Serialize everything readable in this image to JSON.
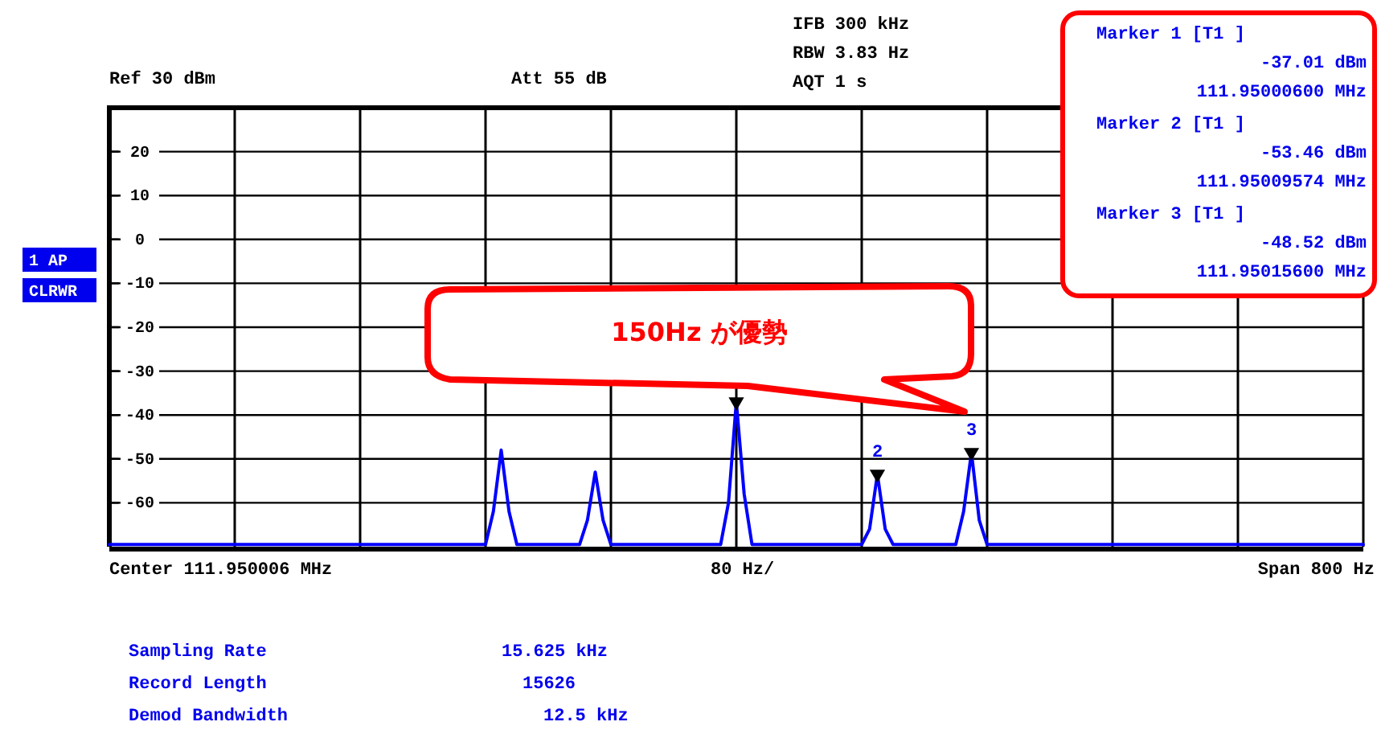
{
  "chart_data": {
    "type": "line",
    "ylim": [
      -70,
      30
    ],
    "categories": [
      null,
      null,
      null,
      null,
      null,
      null,
      null,
      null,
      null,
      null,
      null,
      null,
      null,
      null,
      null,
      null,
      null,
      null,
      null,
      null,
      null,
      null,
      null,
      null,
      null,
      null,
      null,
      null,
      null,
      null,
      null,
      null,
      null,
      null,
      null,
      null,
      null,
      null,
      null,
      null,
      null,
      null,
      null,
      null,
      null,
      null,
      null,
      null,
      null,
      null,
      null,
      null,
      null,
      null,
      null,
      null,
      null,
      null,
      null,
      null,
      null,
      null,
      null,
      null,
      null,
      null,
      null,
      null,
      null,
      null,
      null,
      null,
      null,
      null,
      null,
      null,
      null,
      null,
      null,
      null,
      null,
      null,
      null,
      null,
      null,
      null,
      null,
      null,
      null,
      null,
      null,
      null,
      null,
      null,
      null,
      null,
      null,
      null,
      null,
      null,
      null,
      null,
      null,
      null,
      null,
      null,
      null,
      null,
      null,
      null,
      null,
      null,
      null,
      null,
      null,
      null,
      null,
      null,
      null,
      null,
      null,
      null,
      null,
      null,
      null,
      null,
      null,
      null,
      null,
      null,
      null,
      null,
      null,
      null,
      null,
      null,
      null,
      null,
      null,
      null,
      null,
      null,
      null,
      null,
      null,
      null,
      null,
      null,
      null,
      null,
      null,
      null,
      null,
      null,
      null,
      null,
      null,
      null,
      null,
      null,
      null
    ],
    "yticks": [
      -60,
      -50,
      -40,
      -30,
      -20,
      -10,
      0,
      10,
      20
    ],
    "grid": true,
    "series": [
      {
        "color": "#0000ff",
        "line_style": "solid",
        "values": [
          -69.5,
          -69.5,
          -69.5,
          -69.5,
          -69.5,
          -69.5,
          -69.5,
          -69.5,
          -69.5,
          -69.5,
          -69.5,
          -69.5,
          -69.5,
          -69.5,
          -69.5,
          -69.5,
          -69.5,
          -69.5,
          -69.5,
          -69.5,
          -69.5,
          -69.5,
          -69.5,
          -69.5,
          -69.5,
          -69.5,
          -69.5,
          -69.5,
          -69.5,
          -69.5,
          -69.5,
          -69.5,
          -69.5,
          -69.5,
          -69.5,
          -69.5,
          -69.5,
          -69.5,
          -69.5,
          -69.5,
          -69.5,
          -69.5,
          -69.5,
          -69.5,
          -69.5,
          -69.5,
          -69.5,
          -69.5,
          -69.5,
          -62,
          -48,
          -62,
          -69.5,
          -69.5,
          -69.5,
          -69.5,
          -69.5,
          -69.5,
          -69.5,
          -69.5,
          -69.5,
          -64,
          -53,
          -64,
          -69.5,
          -69.5,
          -69.5,
          -69.5,
          -69.5,
          -69.5,
          -69.5,
          -69.5,
          -69.5,
          -69.5,
          -69.5,
          -69.5,
          -69.5,
          -69.5,
          -69.5,
          -60,
          -37.01,
          -58,
          -69.5,
          -69.5,
          -69.5,
          -69.5,
          -69.5,
          -69.5,
          -69.5,
          -69.5,
          -69.5,
          -69.5,
          -69.5,
          -69.5,
          -69.5,
          -69.5,
          -69.5,
          -66,
          -53.46,
          -66,
          -69.5,
          -69.5,
          -69.5,
          -69.5,
          -69.5,
          -69.5,
          -69.5,
          -69.5,
          -69.5,
          -62,
          -48.52,
          -64,
          -69.5,
          -69.5,
          -69.5,
          -69.5,
          -69.5,
          -69.5,
          -69.5,
          -69.5,
          -69.5,
          -69.5,
          -69.5,
          -69.5,
          -69.5,
          -69.5,
          -69.5,
          -69.5,
          -69.5,
          -69.5,
          -69.5,
          -69.5,
          -69.5,
          -69.5,
          -69.5,
          -69.5,
          -69.5,
          -69.5,
          -69.5,
          -69.5,
          -69.5,
          -69.5,
          -69.5,
          -69.5,
          -69.5,
          -69.5,
          -69.5,
          -69.5,
          -69.5,
          -69.5,
          -69.5,
          -69.5,
          -69.5,
          -69.5,
          -69.5,
          -69.5,
          -69.5,
          -69.5,
          -69.5,
          -69.5,
          -69.5
        ]
      },
      {
        "type": "scatter",
        "color": "#000000",
        "marker": "triangle",
        "values": [
          null,
          null,
          null,
          null,
          null,
          null,
          null,
          null,
          null,
          null,
          null,
          null,
          null,
          null,
          null,
          null,
          null,
          null,
          null,
          null,
          null,
          null,
          null,
          null,
          null,
          null,
          null,
          null,
          null,
          null,
          null,
          null,
          null,
          null,
          null,
          null,
          null,
          null,
          null,
          null,
          null,
          null,
          null,
          null,
          null,
          null,
          null,
          null,
          null,
          null,
          null,
          null,
          null,
          null,
          null,
          null,
          null,
          null,
          null,
          null,
          null,
          null,
          null,
          null,
          null,
          null,
          null,
          null,
          null,
          null,
          null,
          null,
          null,
          null,
          null,
          null,
          null,
          null,
          null,
          null,
          -37.01,
          null,
          null,
          null,
          null,
          null,
          null,
          null,
          null,
          null,
          null,
          null,
          null,
          null,
          null,
          null,
          null,
          null,
          -53.46,
          null,
          null,
          null,
          null,
          null,
          null,
          null,
          null,
          null,
          null,
          null,
          -48.52,
          null,
          null,
          null,
          null,
          null,
          null,
          null,
          null,
          null,
          null,
          null,
          null,
          null,
          null,
          null,
          null,
          null,
          null,
          null,
          null,
          null,
          null,
          null,
          null,
          null,
          null,
          null,
          null,
          null,
          null,
          null,
          null,
          null,
          null,
          null,
          null,
          null,
          null,
          null,
          null,
          null,
          null,
          null,
          null,
          null,
          null,
          null,
          null,
          null,
          null
        ]
      }
    ],
    "annotations": [
      "Ref 30 dBm",
      "Att 55 dB",
      "IFB 300 kHz",
      "RBW 3.83 Hz",
      "AQT 1 s",
      "Marker 1 [T1 ]",
      "-37.01 dBm",
      "111.95000600 MHz",
      "Marker 2 [T1 ]",
      "-53.46 dBm",
      "111.95009574 MHz",
      "Marker 3 [T1 ]",
      "-48.52 dBm",
      "111.95015600 MHz",
      "1 AP",
      "CLRWR",
      "Center 111.950006 MHz",
      "80 Hz/",
      "Span 800 Hz",
      "Sampling Rate",
      "15.625 kHz",
      "Record Length",
      "15626",
      "Demod Bandwidth",
      "12.5 kHz",
      "150Hz が優勢",
      "2",
      "3"
    ]
  }
}
